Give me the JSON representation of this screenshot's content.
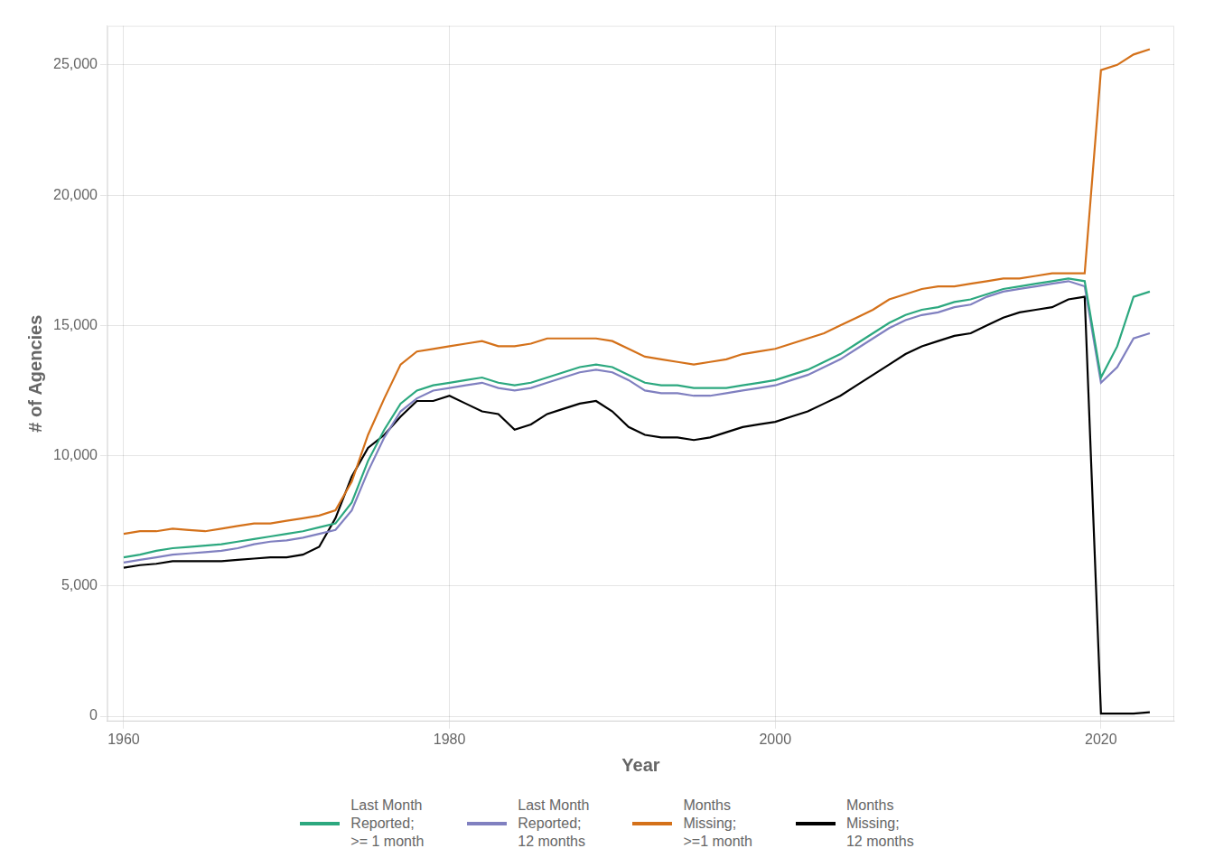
{
  "chart_data": {
    "type": "line",
    "xlabel": "Year",
    "ylabel": "# of Agencies",
    "xlim": [
      1959,
      2024.5
    ],
    "ylim": [
      -200,
      26500
    ],
    "xticks": [
      1960,
      1980,
      2000,
      2020
    ],
    "yticks": [
      0,
      {
        "value": 5000,
        "label": "5,000"
      },
      {
        "value": 10000,
        "label": "10,000"
      },
      {
        "value": 15000,
        "label": "15,000"
      },
      {
        "value": 20000,
        "label": "20,000"
      },
      {
        "value": 25000,
        "label": "25,000"
      }
    ],
    "grid": true,
    "legend": "bottom",
    "x": [
      1960,
      1961,
      1962,
      1963,
      1964,
      1965,
      1966,
      1967,
      1968,
      1969,
      1970,
      1971,
      1972,
      1973,
      1974,
      1975,
      1976,
      1977,
      1978,
      1979,
      1980,
      1981,
      1982,
      1983,
      1984,
      1985,
      1986,
      1987,
      1988,
      1989,
      1990,
      1991,
      1992,
      1993,
      1994,
      1995,
      1996,
      1997,
      1998,
      1999,
      2000,
      2001,
      2002,
      2003,
      2004,
      2005,
      2006,
      2007,
      2008,
      2009,
      2010,
      2011,
      2012,
      2013,
      2014,
      2015,
      2016,
      2017,
      2018,
      2019,
      2020,
      2021,
      2022,
      2023
    ],
    "series": [
      {
        "name": "Last Month\nReported;\n>= 1 month",
        "color": "#2ca87f",
        "values": [
          6100,
          6200,
          6350,
          6450,
          6500,
          6550,
          6600,
          6700,
          6800,
          6900,
          7000,
          7100,
          7250,
          7400,
          8200,
          9800,
          11000,
          12000,
          12500,
          12700,
          12800,
          12900,
          13000,
          12800,
          12700,
          12800,
          13000,
          13200,
          13400,
          13500,
          13400,
          13100,
          12800,
          12700,
          12700,
          12600,
          12600,
          12600,
          12700,
          12800,
          12900,
          13100,
          13300,
          13600,
          13900,
          14300,
          14700,
          15100,
          15400,
          15600,
          15700,
          15900,
          16000,
          16200,
          16400,
          16500,
          16600,
          16700,
          16800,
          16700,
          13000,
          14200,
          16100,
          16300
        ]
      },
      {
        "name": "Last Month\nReported;\n12 months",
        "color": "#8080c0",
        "values": [
          5900,
          6000,
          6100,
          6200,
          6250,
          6300,
          6350,
          6450,
          6600,
          6700,
          6750,
          6850,
          7000,
          7150,
          7900,
          9400,
          10700,
          11700,
          12200,
          12500,
          12600,
          12700,
          12800,
          12600,
          12500,
          12600,
          12800,
          13000,
          13200,
          13300,
          13200,
          12900,
          12500,
          12400,
          12400,
          12300,
          12300,
          12400,
          12500,
          12600,
          12700,
          12900,
          13100,
          13400,
          13700,
          14100,
          14500,
          14900,
          15200,
          15400,
          15500,
          15700,
          15800,
          16100,
          16300,
          16400,
          16500,
          16600,
          16700,
          16500,
          12800,
          13400,
          14500,
          14700
        ]
      },
      {
        "name": "Months\nMissing;\n>=1 month",
        "color": "#d4711a",
        "values": [
          7000,
          7100,
          7100,
          7200,
          7150,
          7100,
          7200,
          7300,
          7400,
          7400,
          7500,
          7600,
          7700,
          7900,
          9000,
          10800,
          12200,
          13500,
          14000,
          14100,
          14200,
          14300,
          14400,
          14200,
          14200,
          14300,
          14500,
          14500,
          14500,
          14500,
          14400,
          14100,
          13800,
          13700,
          13600,
          13500,
          13600,
          13700,
          13900,
          14000,
          14100,
          14300,
          14500,
          14700,
          15000,
          15300,
          15600,
          16000,
          16200,
          16400,
          16500,
          16500,
          16600,
          16700,
          16800,
          16800,
          16900,
          17000,
          17000,
          17000,
          24800,
          25000,
          25400,
          25600
        ]
      },
      {
        "name": "Months\nMissing;\n12 months",
        "color": "#000000",
        "values": [
          5700,
          5800,
          5850,
          5950,
          5950,
          5950,
          5950,
          6000,
          6050,
          6100,
          6100,
          6200,
          6500,
          7600,
          9200,
          10300,
          10800,
          11500,
          12100,
          12100,
          12300,
          12000,
          11700,
          11600,
          11000,
          11200,
          11600,
          11800,
          12000,
          12100,
          11700,
          11100,
          10800,
          10700,
          10700,
          10600,
          10700,
          10900,
          11100,
          11200,
          11300,
          11500,
          11700,
          12000,
          12300,
          12700,
          13100,
          13500,
          13900,
          14200,
          14400,
          14600,
          14700,
          15000,
          15300,
          15500,
          15600,
          15700,
          16000,
          16100,
          100,
          100,
          100,
          150
        ]
      }
    ]
  }
}
